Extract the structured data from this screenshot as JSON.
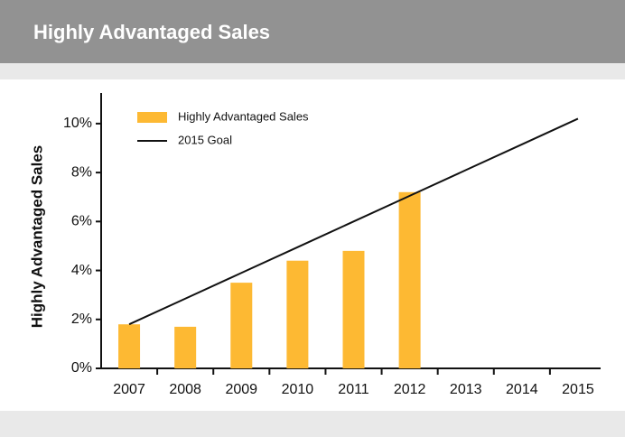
{
  "chart_data": {
    "type": "bar",
    "title": "Highly Advantaged Sales",
    "y_label": "Highly Advantaged Sales",
    "categories": [
      "2007",
      "2008",
      "2009",
      "2010",
      "2011",
      "2012",
      "2013",
      "2014",
      "2015"
    ],
    "series": [
      {
        "name": "Highly Advantaged Sales",
        "type": "bar",
        "color": "#fdb933",
        "values": [
          1.8,
          1.7,
          3.5,
          4.4,
          4.8,
          7.2,
          null,
          null,
          null
        ]
      },
      {
        "name": "2015 Goal",
        "type": "line",
        "color": "#111111",
        "values": [
          1.8,
          2.85,
          3.9,
          4.95,
          6.0,
          7.05,
          8.1,
          9.15,
          10.2
        ]
      }
    ],
    "ylim": [
      0,
      11.25
    ],
    "yticks": [
      {
        "value": 0,
        "label": "0%"
      },
      {
        "value": 2,
        "label": "2%"
      },
      {
        "value": 4,
        "label": "4%"
      },
      {
        "value": 6,
        "label": "6%"
      },
      {
        "value": 8,
        "label": "8%"
      },
      {
        "value": 10,
        "label": "10%"
      }
    ],
    "legend": "top-left"
  }
}
